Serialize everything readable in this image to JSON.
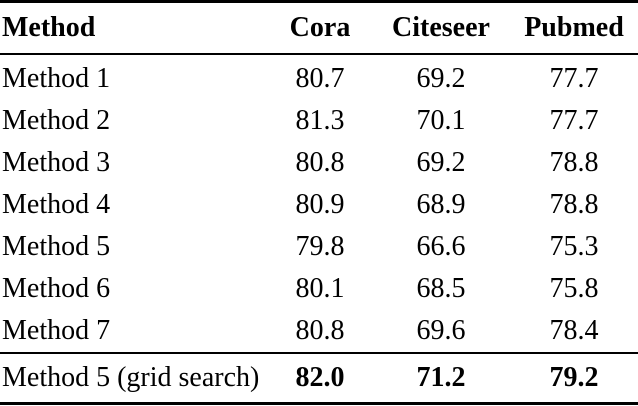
{
  "table": {
    "header": [
      "Method",
      "Cora",
      "Citeseer",
      "Pubmed"
    ],
    "rows": [
      [
        "Method 1",
        "80.7",
        "69.2",
        "77.7"
      ],
      [
        "Method 2",
        "81.3",
        "70.1",
        "77.7"
      ],
      [
        "Method 3",
        "80.8",
        "69.2",
        "78.8"
      ],
      [
        "Method 4",
        "80.9",
        "68.9",
        "78.8"
      ],
      [
        "Method 5",
        "79.8",
        "66.6",
        "75.3"
      ],
      [
        "Method 6",
        "80.1",
        "68.5",
        "75.8"
      ],
      [
        "Method 7",
        "80.8",
        "69.6",
        "78.4"
      ]
    ],
    "footer": [
      "Method 5 (grid search)",
      "82.0",
      "71.2",
      "79.2"
    ]
  },
  "colors": {
    "text": "#000000",
    "background": "#ffffff",
    "rule": "#000000"
  },
  "chart_data": {
    "type": "table",
    "title": "",
    "columns": [
      "Method",
      "Cora",
      "Citeseer",
      "Pubmed"
    ],
    "series": [
      {
        "name": "Method 1",
        "values": [
          80.7,
          69.2,
          77.7
        ]
      },
      {
        "name": "Method 2",
        "values": [
          81.3,
          70.1,
          77.7
        ]
      },
      {
        "name": "Method 3",
        "values": [
          80.8,
          69.2,
          78.8
        ]
      },
      {
        "name": "Method 4",
        "values": [
          80.9,
          68.9,
          78.8
        ]
      },
      {
        "name": "Method 5",
        "values": [
          79.8,
          66.6,
          75.3
        ]
      },
      {
        "name": "Method 6",
        "values": [
          80.1,
          68.5,
          75.8
        ]
      },
      {
        "name": "Method 7",
        "values": [
          80.8,
          69.6,
          78.4
        ]
      },
      {
        "name": "Method 5 (grid search)",
        "values": [
          82.0,
          71.2,
          79.2
        ]
      }
    ]
  }
}
